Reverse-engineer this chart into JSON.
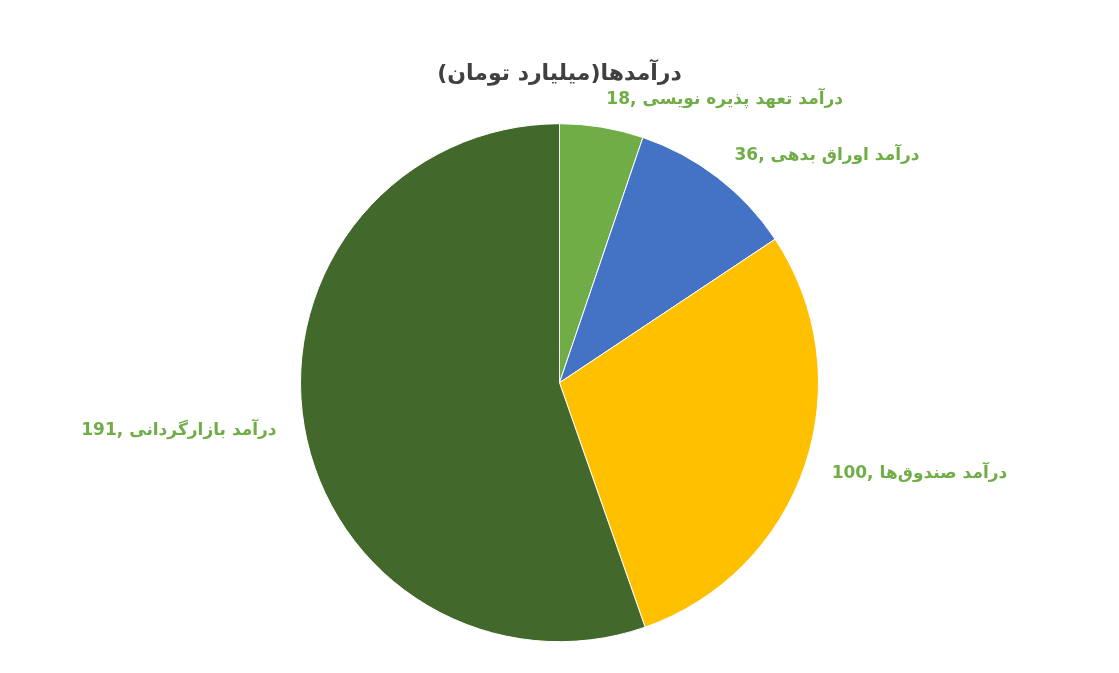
{
  "chart_data": {
    "type": "pie",
    "title": "درآمدها(میلیارد تومان)",
    "categories": [
      "درآمد تعهد پذیره نویسی",
      "درآمد اوراق بدهی",
      "درآمد صندوق‌ها",
      "درآمد بازارگردانی"
    ],
    "values": [
      18,
      36,
      100,
      191
    ],
    "colors": [
      "#70ad47",
      "#4472c4",
      "#ffc000",
      "#43682b"
    ],
    "value_labels": [
      "18,",
      "36,",
      "100,",
      "191,"
    ],
    "legend": false
  }
}
